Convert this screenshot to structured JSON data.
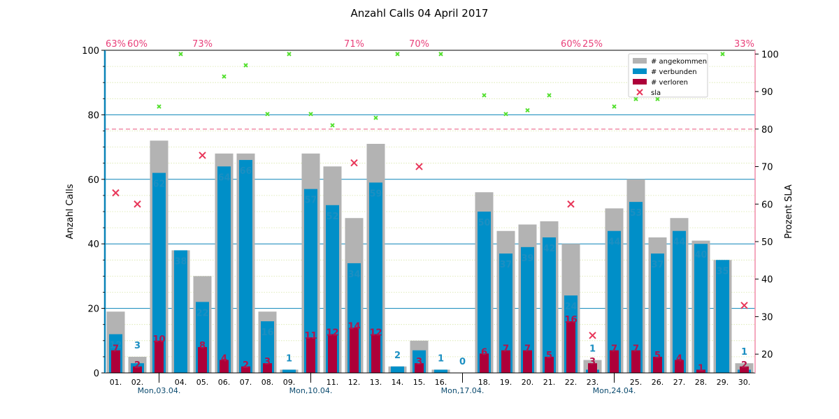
{
  "chart_data": {
    "type": "bar",
    "title": "Anzahl Calls 04 April 2017",
    "ylabel": "Anzahl Calls",
    "y2label": "Prozent SLA",
    "ylim": [
      0,
      100
    ],
    "y2lim": [
      15,
      101
    ],
    "yticks": [
      "0",
      "20",
      "40",
      "60",
      "80",
      "100"
    ],
    "y2ticks": [
      "20",
      "30",
      "40",
      "50",
      "60",
      "70",
      "80",
      "90",
      "100"
    ],
    "sla_threshold": 80,
    "categories": [
      "01.",
      "02.",
      "03.",
      "04.",
      "05.",
      "06.",
      "07.",
      "08.",
      "09.",
      "10.",
      "11.",
      "12.",
      "13.",
      "14.",
      "15.",
      "16.",
      "17.",
      "18.",
      "19.",
      "20.",
      "21.",
      "22.",
      "23.",
      "24.",
      "25.",
      "26.",
      "27.",
      "28.",
      "29.",
      "30."
    ],
    "week_labels": [
      {
        "index": 2,
        "label": "Mon,03.04."
      },
      {
        "index": 9,
        "label": "Mon,10.04."
      },
      {
        "index": 16,
        "label": "Mon,17.04."
      },
      {
        "index": 23,
        "label": "Mon,24.04."
      }
    ],
    "series": [
      {
        "name": "# angekommen",
        "color": "#b3b3b3",
        "values": [
          19,
          5,
          72,
          38,
          30,
          68,
          68,
          19,
          1,
          68,
          64,
          48,
          71,
          2,
          10,
          1,
          0,
          56,
          44,
          46,
          47,
          40,
          4,
          51,
          60,
          42,
          48,
          41,
          35,
          3
        ]
      },
      {
        "name": "# verbunden",
        "color": "#008fc8",
        "values": [
          12,
          3,
          62,
          38,
          22,
          64,
          66,
          16,
          1,
          57,
          52,
          34,
          59,
          2,
          7,
          1,
          0,
          50,
          37,
          39,
          42,
          24,
          1,
          44,
          53,
          37,
          44,
          40,
          35,
          1
        ]
      },
      {
        "name": "# verloren",
        "color": "#ad0039",
        "values": [
          7,
          2,
          10,
          0,
          8,
          4,
          2,
          3,
          0,
          11,
          12,
          14,
          12,
          0,
          3,
          0,
          0,
          6,
          7,
          7,
          5,
          16,
          3,
          7,
          7,
          5,
          4,
          1,
          0,
          2
        ]
      },
      {
        "name": "sla",
        "color": "#e8375a",
        "values": [
          63,
          60,
          86,
          100,
          73,
          94,
          97,
          84,
          100,
          84,
          81,
          71,
          83,
          100,
          70,
          100,
          null,
          89,
          84,
          85,
          89,
          60,
          25,
          86,
          88,
          88,
          92,
          96,
          100,
          33
        ]
      }
    ],
    "sla_labels": [
      {
        "index": 0,
        "text": "63%"
      },
      {
        "index": 1,
        "text": "60%"
      },
      {
        "index": 4,
        "text": "73%"
      },
      {
        "index": 11,
        "text": "71%"
      },
      {
        "index": 14,
        "text": "70%"
      },
      {
        "index": 21,
        "text": "60%"
      },
      {
        "index": 22,
        "text": "25%"
      },
      {
        "index": 29,
        "text": "33%"
      }
    ],
    "verbunden_labels": [
      "12",
      "3",
      "62",
      "38",
      "22",
      "64",
      "66",
      "16",
      "1",
      "57",
      "52",
      "34",
      "59",
      "2",
      "7",
      "1",
      "0",
      "50",
      "37",
      "39",
      "42",
      "24",
      "1",
      "44",
      "53",
      "37",
      "44",
      "40",
      "35",
      "1"
    ],
    "verloren_labels": [
      "7",
      "2",
      "10",
      "",
      "8",
      "4",
      "2",
      "3",
      "",
      "11",
      "12",
      "14",
      "12",
      "",
      "3",
      "",
      "",
      "6",
      "7",
      "7",
      "5",
      "16",
      "3",
      "7",
      "7",
      "5",
      "4",
      "1",
      "",
      "2"
    ],
    "legend_position": "top-right",
    "grid": true
  }
}
